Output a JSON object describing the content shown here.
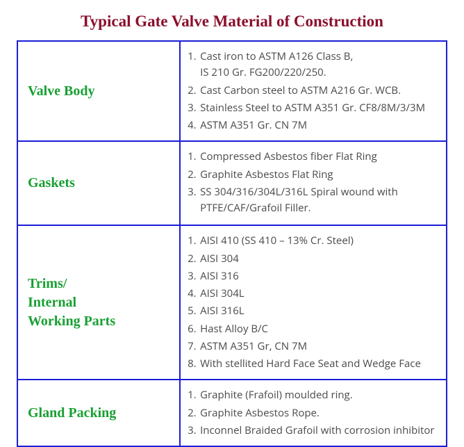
{
  "title": "Typical Gate Valve Material of Construction",
  "colors": {
    "title": "#8b0f2b",
    "border": "#1a1ed6",
    "label": "#18a032",
    "text": "#4a4a4a",
    "background": "#ffffff"
  },
  "rows": [
    {
      "label": "Valve Body",
      "items": [
        {
          "n": "1.",
          "t": "Cast iron to ASTM A126 Class B,",
          "sub": "IS 210 Gr. FG200/220/250."
        },
        {
          "n": "2.",
          "t": "Cast Carbon steel to ASTM A216 Gr. WCB."
        },
        {
          "n": "3.",
          "t": "Stainless Steel to ASTM A351 Gr. CF8/8M/3/3M"
        },
        {
          "n": "4.",
          "t": "ASTM A351 Gr. CN 7M"
        }
      ]
    },
    {
      "label": "Gaskets",
      "items": [
        {
          "n": "1.",
          "t": "Compressed Asbestos fiber Flat Ring"
        },
        {
          "n": "2.",
          "t": "Graphite Asbestos Flat Ring"
        },
        {
          "n": "3.",
          "t": "SS 304/316/304L/316L Spiral wound with",
          "sub": "PTFE/CAF/Grafoil Filler."
        }
      ]
    },
    {
      "label": "Trims/\nInternal\nWorking Parts",
      "items": [
        {
          "n": "1.",
          "t": "AISI 410 (SS 410 – 13% Cr. Steel)"
        },
        {
          "n": "2.",
          "t": "AISI 304"
        },
        {
          "n": "3.",
          "t": "AISI 316"
        },
        {
          "n": "4.",
          "t": "AISI 304L"
        },
        {
          "n": "5.",
          "t": "AISI 316L"
        },
        {
          "n": "6.",
          "t": "Hast Alloy B/C"
        },
        {
          "n": "7.",
          "t": "ASTM A351 Gr, CN 7M"
        },
        {
          "n": "8.",
          "t": "With stellited Hard Face Seat and Wedge Face"
        }
      ]
    },
    {
      "label": "Gland Packing",
      "items": [
        {
          "n": "1.",
          "t": " Graphite (Frafoil) moulded ring."
        },
        {
          "n": "2.",
          "t": "Graphite Asbestos Rope."
        },
        {
          "n": "3.",
          "t": "Inconnel Braided Grafoil with corrosion inhibitor"
        }
      ]
    }
  ]
}
